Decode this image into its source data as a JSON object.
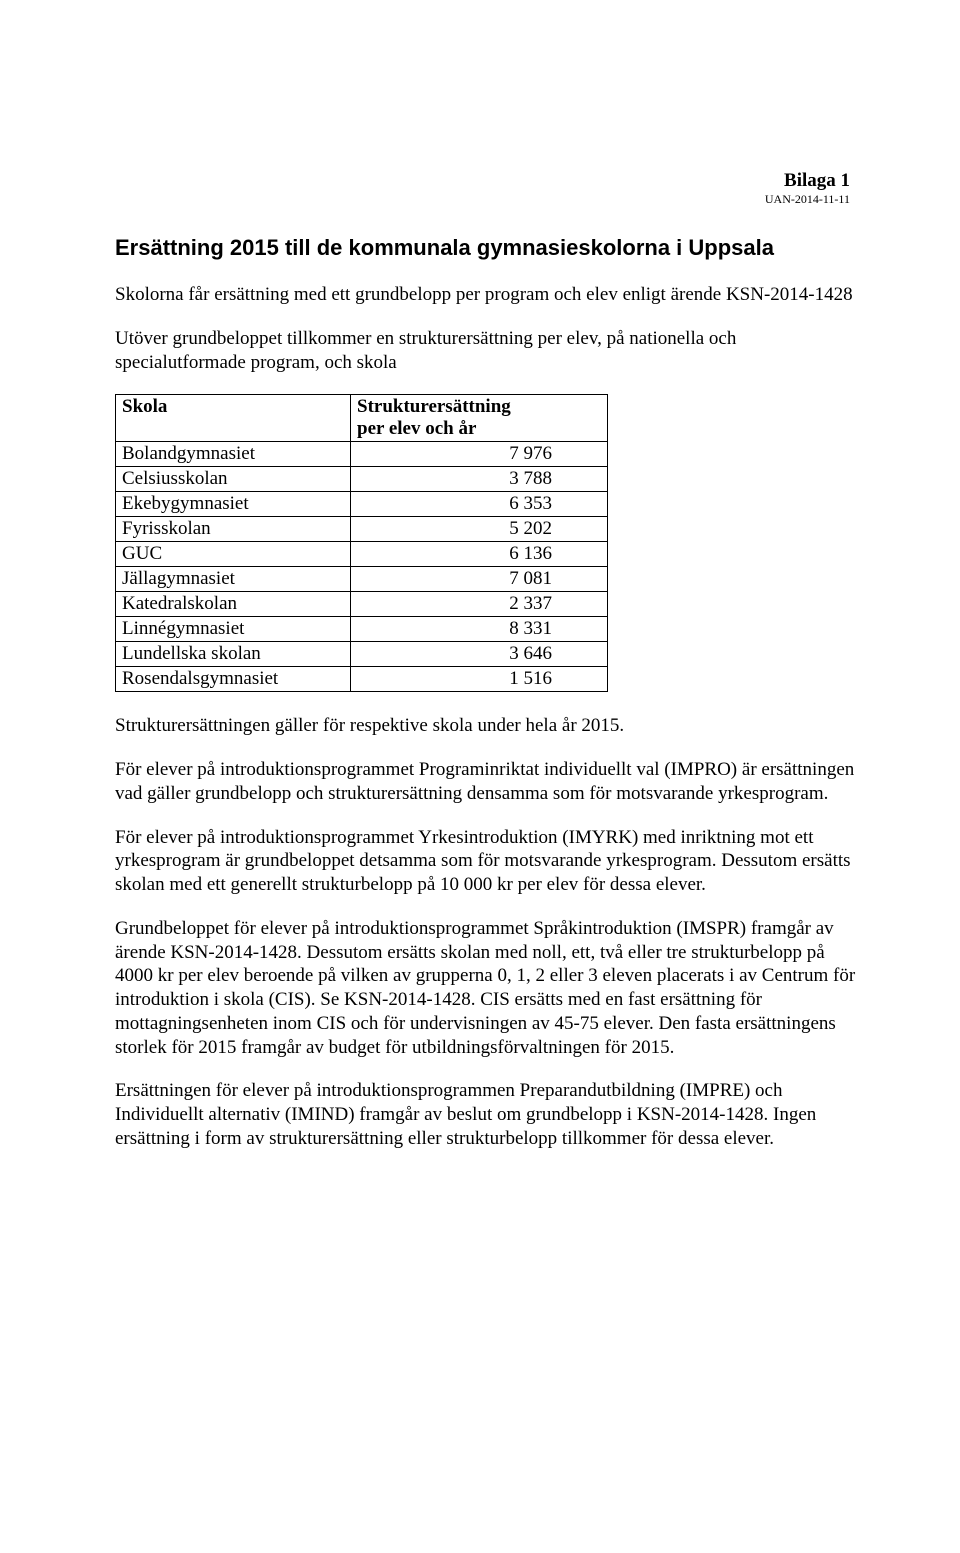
{
  "header": {
    "bilaga": "Bilaga 1",
    "uan": "UAN-2014-11-11"
  },
  "title": "Ersättning 2015 till de kommunala gymnasieskolorna i Uppsala",
  "para1": "Skolorna får ersättning med ett grundbelopp per program och elev enligt ärende KSN-2014-1428",
  "para2": "Utöver grundbeloppet tillkommer en strukturersättning per elev, på nationella och specialutformade program, och skola",
  "table": {
    "header_col1": "Skola",
    "header_col2_line1": "Strukturersättning",
    "header_col2_line2": "per elev och år",
    "rows": [
      {
        "skola": "Bolandgymnasiet",
        "value": "7 976"
      },
      {
        "skola": "Celsiusskolan",
        "value": "3 788"
      },
      {
        "skola": "Ekebygymnasiet",
        "value": "6 353"
      },
      {
        "skola": "Fyrisskolan",
        "value": "5 202"
      },
      {
        "skola": "GUC",
        "value": "6 136"
      },
      {
        "skola": "Jällagymnasiet",
        "value": "7 081"
      },
      {
        "skola": "Katedralskolan",
        "value": "2 337"
      },
      {
        "skola": "Linnégymnasiet",
        "value": "8 331"
      },
      {
        "skola": "Lundellska skolan",
        "value": "3 646"
      },
      {
        "skola": "Rosendalsgymnasiet",
        "value": "1 516"
      }
    ]
  },
  "para3": "Strukturersättningen gäller för respektive skola under hela år 2015.",
  "para4": "För elever på introduktionsprogrammet Programinriktat individuellt val (IMPRO) är ersättningen vad gäller grundbelopp och strukturersättning densamma som för motsvarande yrkesprogram.",
  "para5": "För elever på introduktionsprogrammet Yrkesintroduktion (IMYRK) med inriktning mot ett yrkesprogram är grundbeloppet detsamma som för motsvarande yrkesprogram. Dessutom ersätts skolan med ett generellt strukturbelopp på 10 000 kr per elev för dessa elever.",
  "para6": "Grundbeloppet för elever på introduktionsprogrammet Språkintroduktion (IMSPR) framgår av ärende KSN-2014-1428. Dessutom ersätts skolan med noll, ett, två eller tre strukturbelopp på 4000 kr per elev beroende på vilken av grupperna 0, 1, 2 eller 3 eleven placerats i av Centrum för introduktion i skola (CIS). Se KSN-2014-1428. CIS ersätts med en fast ersättning för mottagningsenheten inom CIS och för undervisningen av 45-75 elever. Den fasta ersättningens storlek för 2015 framgår av budget för utbildningsförvaltningen för 2015.",
  "para7": "Ersättningen för elever på introduktionsprogrammen Preparandutbildning (IMPRE) och Individuellt alternativ (IMIND) framgår av beslut om grundbelopp i KSN-2014-1428. Ingen ersättning i form av strukturersättning eller strukturbelopp tillkommer för dessa elever."
}
